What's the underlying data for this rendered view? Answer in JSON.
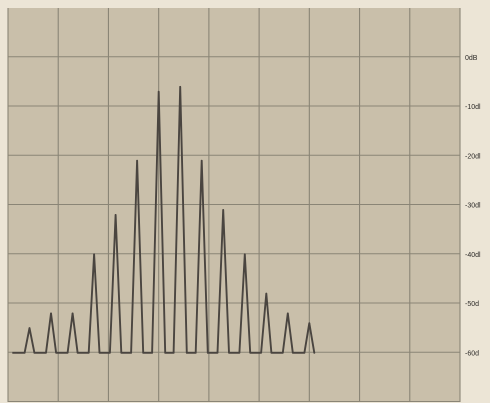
{
  "chart_data": {
    "type": "line",
    "title": "",
    "xlabel": "",
    "ylabel": "",
    "y_tick_labels": [
      "0dB",
      "-10dl",
      "-20dl",
      "-30dl",
      "-40dl",
      "-50d",
      "-60d"
    ],
    "y_ticks": [
      0,
      -10,
      -20,
      -30,
      -40,
      -50,
      -60
    ],
    "ylim": [
      -70,
      10
    ],
    "xlim": [
      0,
      21
    ],
    "grid": true,
    "noise_floor": -60,
    "series": [
      {
        "x": [
          1,
          2,
          3,
          4,
          5,
          6,
          7,
          8,
          9,
          10,
          11,
          12,
          13,
          14
        ],
        "values": [
          -55,
          -52,
          -52,
          -40,
          -32,
          -21,
          -7,
          -6,
          -21,
          -31,
          -40,
          -48,
          -52,
          -54
        ]
      }
    ],
    "colors": {
      "screen": "#c9bfaa",
      "grid": "#8a8576",
      "trace": "#4a4540",
      "margin": "#ece5d6"
    }
  }
}
